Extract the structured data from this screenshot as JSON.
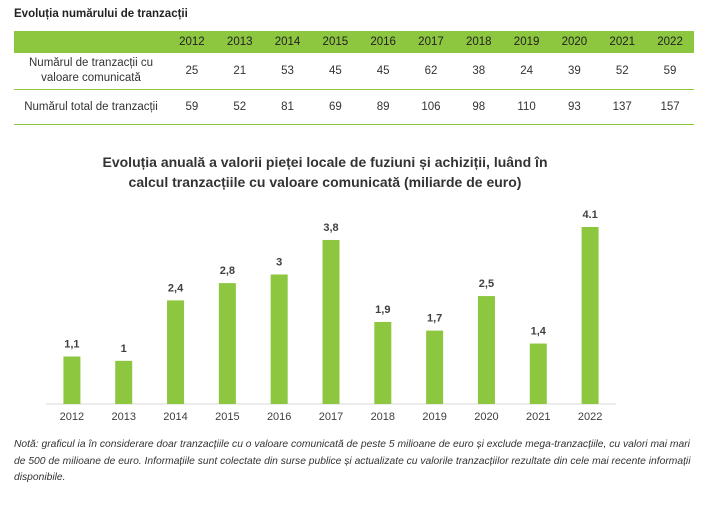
{
  "table": {
    "title": "Evoluția numărului de tranzacții",
    "years": [
      "2012",
      "2013",
      "2014",
      "2015",
      "2016",
      "2017",
      "2018",
      "2019",
      "2020",
      "2021",
      "2022"
    ],
    "rows": [
      {
        "label": "Numărul de tranzacții cu valoare comunicată",
        "values": [
          "25",
          "21",
          "53",
          "45",
          "45",
          "62",
          "38",
          "24",
          "39",
          "52",
          "59"
        ]
      },
      {
        "label": "Numărul total de tranzacții",
        "values": [
          "59",
          "52",
          "81",
          "69",
          "89",
          "106",
          "98",
          "110",
          "93",
          "137",
          "157"
        ]
      }
    ]
  },
  "chart_data": {
    "type": "bar",
    "title": "Evoluția anuală a valorii pieței locale de fuziuni și achiziții, luând în calcul tranzacțiile cu valoare comunicată (miliarde de euro)",
    "categories": [
      "2012",
      "2013",
      "2014",
      "2015",
      "2016",
      "2017",
      "2018",
      "2019",
      "2020",
      "2021",
      "2022"
    ],
    "values": [
      1.1,
      1.0,
      2.4,
      2.8,
      3.0,
      3.8,
      1.9,
      1.7,
      2.5,
      1.4,
      4.1
    ],
    "data_labels": [
      "1,1",
      "1",
      "2,4",
      "2,8",
      "3",
      "3,8",
      "1,9",
      "1,7",
      "2,5",
      "1,4",
      "4.1"
    ],
    "xlabel": "",
    "ylabel": "",
    "ylim": [
      0,
      4.1
    ],
    "grid": false,
    "legend": "none",
    "bar_color": "#8dc63f",
    "axis_color": "#d9d9d9"
  },
  "note": "Notă: graficul ia în considerare doar tranzacțiile cu o valoare comunicată de peste 5 milioane de euro și exclude mega-tranzacțiile, cu valori mai mari de 500 de milioane de euro. Informațiile sunt colectate din surse publice și actualizate cu valorile tranzacțiilor rezultate din cele mai recente informații disponibile."
}
